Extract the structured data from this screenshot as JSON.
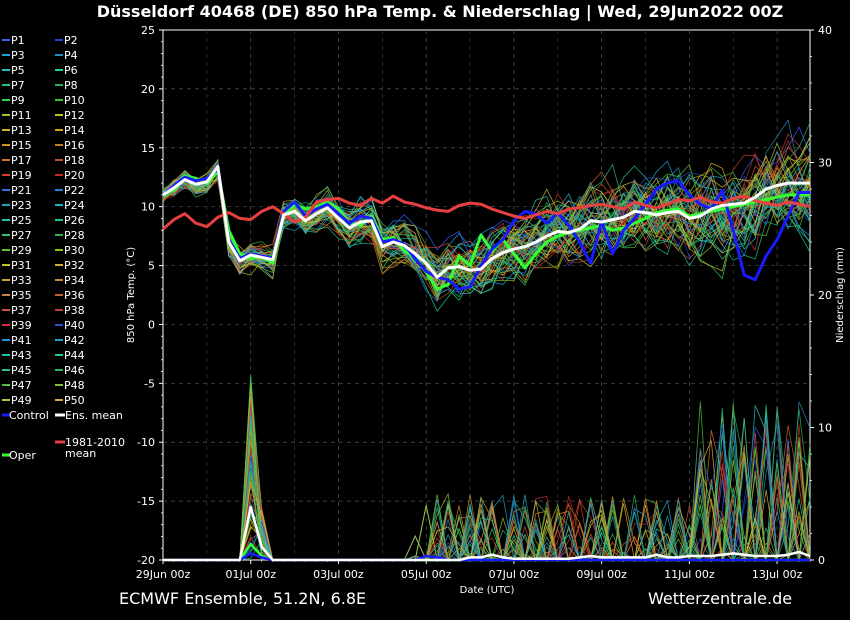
{
  "header": {
    "title": "Düsseldorf 40468 (DE)  850 hPa Temp. & Niederschlag | Wed, 29Jun2022 00Z"
  },
  "footer": {
    "left": "ECMWF Ensemble, 51.2N, 6.8E",
    "right": "Wetterzentrale.de"
  },
  "chart_data": {
    "type": "line",
    "xlabel": "Date (UTC)",
    "ylabel": "850 hPa Temp. (°C)",
    "y2label": "Niederschlag (mm)",
    "ylim": [
      -20,
      25
    ],
    "y2lim": [
      0,
      40
    ],
    "xlim": [
      "29Jun 00z",
      "13Jul 18z"
    ],
    "y_ticks": [
      "25",
      "20",
      "15",
      "10",
      "5",
      "0",
      "-5",
      "-10",
      "-15",
      "-20"
    ],
    "y2_ticks": [
      "40",
      "30",
      "20",
      "10",
      "0"
    ],
    "x_ticks": [
      "29Jun 00z",
      "01Jul 00z",
      "03Jul 00z",
      "05Jul 00z",
      "07Jul 00z",
      "09Jul 00z",
      "11Jul 00z",
      "13Jul 00z"
    ],
    "grid": true,
    "legend": "left",
    "legend_entries": [
      {
        "label": "P1",
        "color": "#3060ff"
      },
      {
        "label": "P2",
        "color": "#2040d0"
      },
      {
        "label": "P3",
        "color": "#20a0e0"
      },
      {
        "label": "P4",
        "color": "#2090c0"
      },
      {
        "label": "P5",
        "color": "#20c0c0"
      },
      {
        "label": "P6",
        "color": "#20d0a0"
      },
      {
        "label": "P7",
        "color": "#20c080"
      },
      {
        "label": "P8",
        "color": "#20b060"
      },
      {
        "label": "P9",
        "color": "#30d050"
      },
      {
        "label": "P10",
        "color": "#40c030"
      },
      {
        "label": "P11",
        "color": "#a0c020"
      },
      {
        "label": "P12",
        "color": "#c0c020"
      },
      {
        "label": "P13",
        "color": "#d0b020"
      },
      {
        "label": "P14",
        "color": "#d0a020"
      },
      {
        "label": "P15",
        "color": "#d09020"
      },
      {
        "label": "P16",
        "color": "#c08020"
      },
      {
        "label": "P17",
        "color": "#d07030"
      },
      {
        "label": "P18",
        "color": "#c05020"
      },
      {
        "label": "P19",
        "color": "#d04030"
      },
      {
        "label": "P20",
        "color": "#c03020"
      },
      {
        "label": "P21",
        "color": "#3070e0"
      },
      {
        "label": "P22",
        "color": "#2080d0"
      },
      {
        "label": "P23",
        "color": "#20a0c0"
      },
      {
        "label": "P24",
        "color": "#20b0d0"
      },
      {
        "label": "P25",
        "color": "#20c0a0"
      },
      {
        "label": "P26",
        "color": "#20c090"
      },
      {
        "label": "P27",
        "color": "#30c070"
      },
      {
        "label": "P28",
        "color": "#30b050"
      },
      {
        "label": "P29",
        "color": "#60c030"
      },
      {
        "label": "P30",
        "color": "#90c020"
      },
      {
        "label": "P31",
        "color": "#c0c030"
      },
      {
        "label": "P32",
        "color": "#d0b030"
      },
      {
        "label": "P33",
        "color": "#d0a030"
      },
      {
        "label": "P34",
        "color": "#c09030"
      },
      {
        "label": "P35",
        "color": "#d08040"
      },
      {
        "label": "P36",
        "color": "#c06030"
      },
      {
        "label": "P37",
        "color": "#d05040"
      },
      {
        "label": "P38",
        "color": "#c04030"
      },
      {
        "label": "P39",
        "color": "#d03040"
      },
      {
        "label": "P40",
        "color": "#3050d0"
      },
      {
        "label": "P41",
        "color": "#2090e0"
      },
      {
        "label": "P42",
        "color": "#20a0d0"
      },
      {
        "label": "P43",
        "color": "#20c0b0"
      },
      {
        "label": "P44",
        "color": "#20d090"
      },
      {
        "label": "P45",
        "color": "#30c080"
      },
      {
        "label": "P46",
        "color": "#30b060"
      },
      {
        "label": "P47",
        "color": "#50c040"
      },
      {
        "label": "P48",
        "color": "#80c030"
      },
      {
        "label": "P49",
        "color": "#c0c040"
      },
      {
        "label": "P50",
        "color": "#d0b040"
      }
    ],
    "special_entries": [
      {
        "label": "Control",
        "color": "#1a1aff"
      },
      {
        "label": "Ens. mean",
        "color": "#ffffff"
      },
      {
        "label": "1981-2010 mean",
        "color": "#e84040"
      },
      {
        "label": "Oper",
        "color": "#33ff33"
      }
    ],
    "x": [
      0,
      0.25,
      0.5,
      0.75,
      1,
      1.25,
      1.5,
      1.75,
      2,
      2.25,
      2.5,
      2.75,
      3,
      3.25,
      3.5,
      3.75,
      4,
      4.25,
      4.5,
      4.75,
      5,
      5.25,
      5.5,
      5.75,
      6,
      6.25,
      6.5,
      6.75,
      7,
      7.25,
      7.5,
      7.75,
      8,
      8.25,
      8.5,
      8.75,
      9,
      9.25,
      9.5,
      9.75,
      10,
      10.25,
      10.5,
      10.75,
      11,
      11.25,
      11.5,
      11.75,
      12,
      12.25,
      12.5,
      12.75,
      13,
      13.25,
      13.5,
      13.75,
      14,
      14.25,
      14.5,
      14.75
    ],
    "series": [
      {
        "name": "Ens. mean",
        "color": "#ffffff",
        "values": [
          11.0,
          11.6,
          12.3,
          11.9,
          12.1,
          13.4,
          7.0,
          5.4,
          5.9,
          5.7,
          5.5,
          9.3,
          9.6,
          8.8,
          9.4,
          9.9,
          9.0,
          8.2,
          8.7,
          8.8,
          6.6,
          7.0,
          6.7,
          6.0,
          5.2,
          4.0,
          4.8,
          4.9,
          4.6,
          4.7,
          5.6,
          6.1,
          6.4,
          6.6,
          7.0,
          7.5,
          7.9,
          7.8,
          8.1,
          8.8,
          8.7,
          8.9,
          9.1,
          9.6,
          9.5,
          9.3,
          9.5,
          9.6,
          9.0,
          9.2,
          9.8,
          10.1,
          10.2,
          10.3,
          10.8,
          11.5,
          11.8,
          12.0,
          12.0,
          12.0
        ]
      },
      {
        "name": "Control",
        "color": "#1a1aff",
        "values": [
          11.0,
          11.8,
          12.5,
          12.2,
          12.4,
          13.2,
          7.2,
          5.6,
          6.0,
          5.8,
          5.6,
          9.6,
          10.4,
          9.2,
          9.8,
          10.2,
          9.4,
          8.6,
          9.2,
          9.0,
          7.0,
          7.2,
          6.8,
          5.6,
          4.5,
          4.0,
          3.8,
          3.0,
          3.2,
          5.0,
          6.4,
          7.2,
          8.8,
          9.6,
          9.4,
          8.6,
          9.5,
          8.4,
          7.0,
          5.2,
          8.8,
          6.0,
          8.0,
          9.0,
          10.2,
          11.5,
          12.0,
          12.2,
          11.0,
          10.2,
          9.8,
          11.4,
          8.0,
          4.2,
          3.8,
          5.8,
          7.2,
          9.2,
          11.2,
          11.2
        ]
      },
      {
        "name": "Oper",
        "color": "#33ff33",
        "values": [
          11.2,
          11.4,
          12.6,
          12.4,
          12.0,
          13.0,
          8.0,
          6.0,
          5.6,
          5.8,
          5.2,
          9.2,
          10.2,
          9.8,
          10.0,
          10.4,
          9.8,
          8.6,
          8.4,
          9.2,
          7.2,
          7.4,
          6.2,
          5.8,
          4.4,
          3.0,
          3.4,
          5.8,
          5.0,
          7.6,
          6.2,
          7.2,
          6.0,
          4.8,
          6.0,
          7.0,
          7.5,
          7.8,
          8.0,
          8.2,
          8.4,
          8.0,
          8.2,
          8.6,
          9.0,
          9.5,
          9.7,
          9.8,
          9.2,
          9.4,
          9.6,
          9.8,
          10.0,
          10.2,
          10.4,
          10.6,
          10.8,
          11.0,
          11.0,
          11.0
        ]
      },
      {
        "name": "1981-2010 mean",
        "color": "#e84040",
        "values": [
          8.1,
          8.9,
          9.4,
          8.6,
          8.3,
          9.1,
          9.5,
          9.0,
          8.9,
          9.6,
          10.0,
          9.4,
          8.7,
          9.1,
          10.4,
          10.6,
          10.7,
          10.3,
          10.1,
          10.7,
          10.3,
          10.9,
          10.4,
          10.2,
          9.9,
          9.7,
          9.6,
          10.1,
          10.3,
          10.2,
          9.8,
          9.5,
          9.2,
          9.0,
          9.3,
          9.6,
          9.4,
          9.8,
          9.9,
          10.1,
          10.2,
          10.0,
          9.8,
          10.4,
          10.1,
          9.9,
          10.2,
          10.6,
          10.5,
          10.8,
          10.4,
          10.3,
          10.7,
          10.9,
          10.5,
          10.3,
          10.1,
          10.4,
          10.2,
          10.0
        ]
      }
    ],
    "precip_series": [
      {
        "name": "Ens. mean",
        "color": "#ffffff",
        "values": [
          0,
          0,
          0,
          0,
          0,
          0,
          0,
          0,
          4.0,
          1.0,
          0,
          0,
          0,
          0,
          0,
          0,
          0,
          0,
          0,
          0,
          0,
          0,
          0,
          0,
          0,
          0,
          0,
          0,
          0.2,
          0.2,
          0.4,
          0.2,
          0.1,
          0.1,
          0.1,
          0.1,
          0.1,
          0.1,
          0.2,
          0.3,
          0.2,
          0.2,
          0.2,
          0.2,
          0.2,
          0.4,
          0.2,
          0.2,
          0.3,
          0.3,
          0.3,
          0.4,
          0.5,
          0.4,
          0.3,
          0.3,
          0.3,
          0.4,
          0.6,
          0.3
        ]
      },
      {
        "name": "Control",
        "color": "#1a1aff",
        "values": [
          0,
          0,
          0,
          0,
          0,
          0,
          0,
          0,
          0.5,
          0.2,
          0,
          0,
          0,
          0,
          0,
          0,
          0,
          0,
          0,
          0,
          0,
          0,
          0,
          0,
          0.3,
          0.2,
          0,
          0,
          0,
          0,
          0,
          0,
          0,
          0,
          0,
          0,
          0,
          0,
          0,
          0,
          0,
          0,
          0,
          0,
          0,
          0,
          0,
          0,
          0,
          0,
          0,
          0,
          0,
          0,
          0,
          0,
          0,
          0,
          0,
          0
        ]
      },
      {
        "name": "Oper",
        "color": "#33ff33",
        "values": [
          0,
          0,
          0,
          0,
          0,
          0,
          0,
          0,
          1.2,
          0.3,
          0,
          0,
          0,
          0,
          0,
          0,
          0,
          0,
          0,
          0,
          0,
          0,
          0,
          0,
          0,
          0,
          0,
          0,
          0,
          0,
          0,
          0,
          0,
          0,
          0,
          0,
          0,
          0,
          0,
          0,
          0,
          0,
          0,
          0,
          0,
          0,
          0,
          0,
          0,
          0,
          0,
          0,
          0,
          0,
          0,
          0,
          0,
          0,
          0,
          0
        ]
      }
    ]
  }
}
